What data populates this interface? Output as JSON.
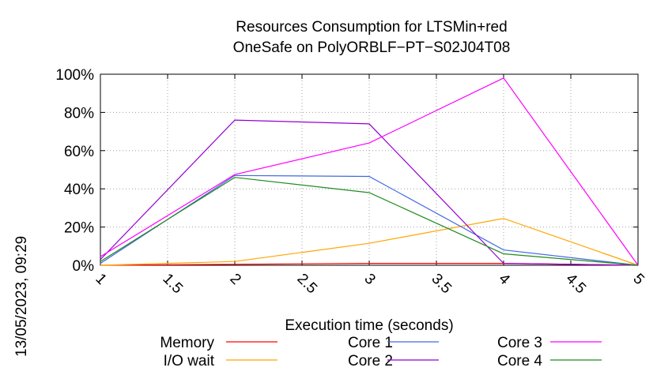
{
  "chart_data": {
    "type": "line",
    "title": [
      "Resources Consumption for LTSMin+red",
      "OneSafe on PolyORBLF−PT−S02J04T08"
    ],
    "xlabel": "Execution time (seconds)",
    "ylabel": "",
    "xlim": [
      1,
      5
    ],
    "ylim": [
      0,
      100
    ],
    "x_ticks": [
      "1",
      "1.5",
      "2",
      "2.5",
      "3",
      "3.5",
      "4",
      "4.5",
      "5"
    ],
    "y_ticks": [
      "0%",
      "20%",
      "40%",
      "60%",
      "80%",
      "100%"
    ],
    "grid": true,
    "legend_position": "bottom",
    "timestamp": "13/05/2023, 09:29",
    "series": [
      {
        "name": "Memory",
        "color": "#ff0000",
        "x": [
          1,
          2,
          3,
          4,
          5
        ],
        "y": [
          0,
          0.5,
          1,
          1,
          0
        ]
      },
      {
        "name": "I/O wait",
        "color": "#ffa500",
        "x": [
          1,
          2,
          3,
          4,
          5
        ],
        "y": [
          0,
          2,
          11.5,
          24.5,
          0
        ]
      },
      {
        "name": "Core 1",
        "color": "#4169e1",
        "x": [
          1,
          2,
          3,
          4,
          5
        ],
        "y": [
          1,
          47,
          46.5,
          8,
          0
        ]
      },
      {
        "name": "Core 2",
        "color": "#9400d3",
        "x": [
          1,
          2,
          3,
          4,
          5
        ],
        "y": [
          3,
          76,
          74,
          1,
          0
        ]
      },
      {
        "name": "Core 3",
        "color": "#ff00ff",
        "x": [
          1,
          2,
          3,
          4,
          5
        ],
        "y": [
          4.5,
          47.5,
          64,
          98,
          0
        ]
      },
      {
        "name": "Core 4",
        "color": "#228b22",
        "x": [
          1,
          2,
          3,
          4,
          5
        ],
        "y": [
          2,
          46,
          38,
          6,
          0
        ]
      }
    ]
  }
}
